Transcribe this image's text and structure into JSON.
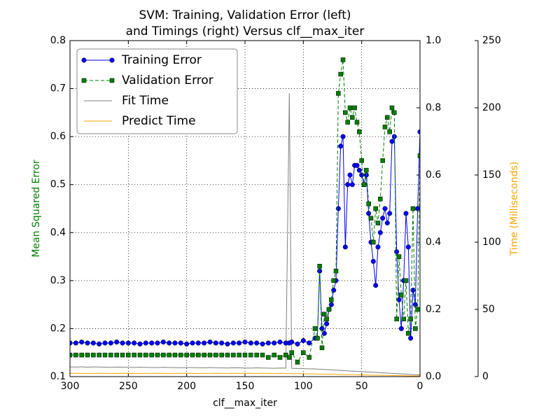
{
  "chart_data": {
    "type": "line",
    "title": [
      "SVM: Training, Validation Error (left)",
      "and Timings (right) Versus clf__max_iter"
    ],
    "xlabel": "clf__max_iter",
    "ylabel": "Mean Squared Error",
    "y3label": "Time (Milliseconds)",
    "ylabel_color": "#008000",
    "y3label_color": "#ffa500",
    "xlim": [
      300,
      0
    ],
    "xticks": [
      300,
      250,
      200,
      150,
      100,
      50,
      0
    ],
    "ylim": [
      0.1,
      0.8
    ],
    "yticks": [
      0.1,
      0.2,
      0.3,
      0.4,
      0.5,
      0.6,
      0.7,
      0.8
    ],
    "y2lim": [
      0,
      1
    ],
    "y2ticks": [
      {
        "value": 0,
        "label": "0.0"
      },
      0.2,
      0.4,
      0.6,
      0.8,
      {
        "value": 1,
        "label": "1.0"
      }
    ],
    "y3lim": [
      0,
      250
    ],
    "y3ticks": [
      0,
      50,
      100,
      150,
      200,
      250
    ],
    "grid": true,
    "legend": "upper-left",
    "x": [
      300,
      295,
      290,
      285,
      280,
      275,
      270,
      265,
      260,
      255,
      250,
      245,
      240,
      235,
      230,
      225,
      220,
      215,
      210,
      205,
      200,
      195,
      190,
      185,
      180,
      175,
      170,
      165,
      160,
      155,
      150,
      145,
      140,
      135,
      130,
      125,
      120,
      115,
      112,
      110,
      105,
      100,
      95,
      90,
      88,
      86,
      84,
      82,
      80,
      78,
      76,
      74,
      72,
      70,
      68,
      66,
      64,
      62,
      60,
      58,
      56,
      54,
      52,
      50,
      48,
      46,
      44,
      42,
      40,
      38,
      36,
      34,
      32,
      30,
      28,
      26,
      24,
      22,
      20,
      18,
      16,
      14,
      12,
      10,
      8,
      6,
      4,
      2,
      0
    ],
    "series": [
      {
        "name": "Training Error",
        "color": "#0000ff",
        "marker": "circle",
        "dash": false,
        "axis": "y",
        "values": [
          0.17,
          0.17,
          0.172,
          0.17,
          0.17,
          0.168,
          0.17,
          0.17,
          0.172,
          0.17,
          0.17,
          0.17,
          0.168,
          0.17,
          0.17,
          0.17,
          0.172,
          0.17,
          0.17,
          0.17,
          0.168,
          0.17,
          0.17,
          0.17,
          0.172,
          0.17,
          0.17,
          0.168,
          0.17,
          0.17,
          0.172,
          0.17,
          0.17,
          0.168,
          0.17,
          0.17,
          0.172,
          0.17,
          0.17,
          0.172,
          0.168,
          0.175,
          0.17,
          0.18,
          0.18,
          0.32,
          0.2,
          0.19,
          0.21,
          0.24,
          0.25,
          0.28,
          0.3,
          0.45,
          0.58,
          0.6,
          0.37,
          0.5,
          0.52,
          0.5,
          0.54,
          0.54,
          0.53,
          0.52,
          0.5,
          0.52,
          0.44,
          0.38,
          0.34,
          0.29,
          0.37,
          0.4,
          0.43,
          0.45,
          0.42,
          0.44,
          0.59,
          0.6,
          0.36,
          0.26,
          0.2,
          0.3,
          0.44,
          0.37,
          0.18,
          0.28,
          0.25,
          0.45,
          0.61
        ]
      },
      {
        "name": "Validation Error",
        "color": "#008000",
        "marker": "square",
        "dash": true,
        "axis": "y",
        "values": [
          0.145,
          0.145,
          0.145,
          0.145,
          0.145,
          0.145,
          0.145,
          0.145,
          0.145,
          0.145,
          0.145,
          0.145,
          0.145,
          0.145,
          0.145,
          0.145,
          0.145,
          0.145,
          0.145,
          0.145,
          0.145,
          0.145,
          0.145,
          0.145,
          0.145,
          0.145,
          0.145,
          0.145,
          0.145,
          0.145,
          0.145,
          0.145,
          0.145,
          0.145,
          0.14,
          0.145,
          0.14,
          0.145,
          0.14,
          0.15,
          0.13,
          0.15,
          0.14,
          0.2,
          0.18,
          0.33,
          0.16,
          0.23,
          0.22,
          0.24,
          0.26,
          0.3,
          0.32,
          0.69,
          0.73,
          0.76,
          0.65,
          0.63,
          0.66,
          0.64,
          0.66,
          0.63,
          0.61,
          0.55,
          0.5,
          0.53,
          0.46,
          0.43,
          0.38,
          0.45,
          0.42,
          0.47,
          0.55,
          0.62,
          0.64,
          0.61,
          0.66,
          0.65,
          0.22,
          0.35,
          0.27,
          0.22,
          0.3,
          0.19,
          0.22,
          0.45,
          0.2,
          0.24,
          0.56
        ]
      },
      {
        "name": "Fit Time",
        "color": "#808080",
        "marker": "none",
        "dash": false,
        "axis": "y3",
        "values": [
          7.2,
          7.1,
          7.3,
          7.0,
          7.2,
          7.1,
          7.0,
          6.9,
          7.1,
          7.0,
          6.9,
          6.8,
          7.0,
          6.9,
          6.8,
          6.7,
          6.9,
          6.8,
          6.7,
          6.6,
          6.8,
          6.7,
          6.6,
          6.5,
          6.7,
          6.6,
          6.5,
          6.4,
          6.6,
          6.5,
          6.4,
          6.3,
          6.5,
          6.4,
          6.3,
          6.2,
          6.4,
          6.3,
          211,
          6.2,
          6.0,
          5.9,
          5.8,
          5.7,
          5.6,
          5.5,
          5.4,
          5.3,
          5.2,
          5.1,
          5.0,
          4.9,
          4.8,
          4.7,
          4.6,
          4.5,
          4.4,
          4.3,
          4.2,
          4.1,
          4.0,
          3.9,
          3.8,
          3.7,
          3.6,
          3.5,
          3.4,
          3.3,
          3.2,
          3.1,
          3.0,
          2.9,
          2.8,
          2.7,
          2.6,
          2.5,
          2.4,
          2.3,
          2.2,
          2.1,
          2.0,
          1.9,
          1.8,
          1.7,
          1.6,
          1.5,
          1.4,
          1.3,
          1.2
        ]
      },
      {
        "name": "Predict Time",
        "color": "#ffa500",
        "marker": "none",
        "dash": false,
        "axis": "y3",
        "values": [
          2.4,
          2.5,
          2.4,
          2.3,
          2.4,
          2.5,
          2.4,
          2.3,
          2.4,
          2.4,
          2.5,
          2.4,
          2.3,
          2.4,
          2.4,
          2.5,
          2.4,
          2.3,
          2.4,
          2.4,
          2.5,
          2.4,
          2.3,
          2.4,
          2.4,
          2.5,
          2.4,
          2.3,
          2.4,
          2.4,
          2.5,
          2.4,
          2.3,
          2.4,
          2.4,
          2.3,
          2.4,
          2.3,
          2.3,
          2.2,
          2.2,
          2.1,
          2.1,
          2.0,
          1.9,
          1.9,
          1.8,
          1.8,
          1.8,
          1.7,
          1.7,
          1.7,
          1.6,
          1.6,
          1.6,
          1.5,
          1.5,
          1.5,
          1.4,
          1.4,
          1.4,
          1.3,
          1.3,
          1.3,
          1.2,
          1.2,
          1.2,
          1.1,
          1.1,
          1.1,
          1.0,
          1.0,
          1.0,
          0.9,
          0.9,
          0.9,
          0.8,
          0.8,
          0.8,
          0.7,
          0.7,
          0.7,
          0.6,
          0.6,
          0.6,
          0.5,
          0.5,
          0.5,
          0.5
        ]
      }
    ]
  }
}
